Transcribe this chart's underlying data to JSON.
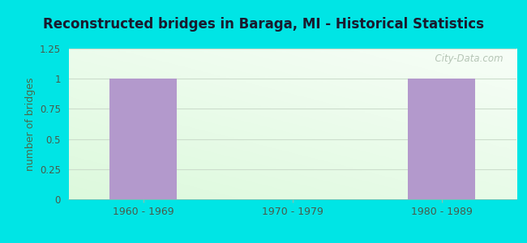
{
  "title": "Reconstructed bridges in Baraga, MI - Historical Statistics",
  "categories": [
    "1960 - 1969",
    "1970 - 1979",
    "1980 - 1989"
  ],
  "values": [
    1,
    0,
    1
  ],
  "bar_color": "#b399cc",
  "ylabel": "number of bridges",
  "ylim": [
    0,
    1.25
  ],
  "yticks": [
    0,
    0.25,
    0.5,
    0.75,
    1,
    1.25
  ],
  "background_outer": "#00e5e5",
  "title_color": "#1a1a2e",
  "axis_label_color": "#4a6a4a",
  "tick_label_color": "#4a5a4a",
  "watermark": "  City-Data.com",
  "watermark_color": "#aabbaa",
  "grid_color": "#ccddcc",
  "gradient_top": "#e8f5e8",
  "gradient_bottom": "#c8e8d0"
}
